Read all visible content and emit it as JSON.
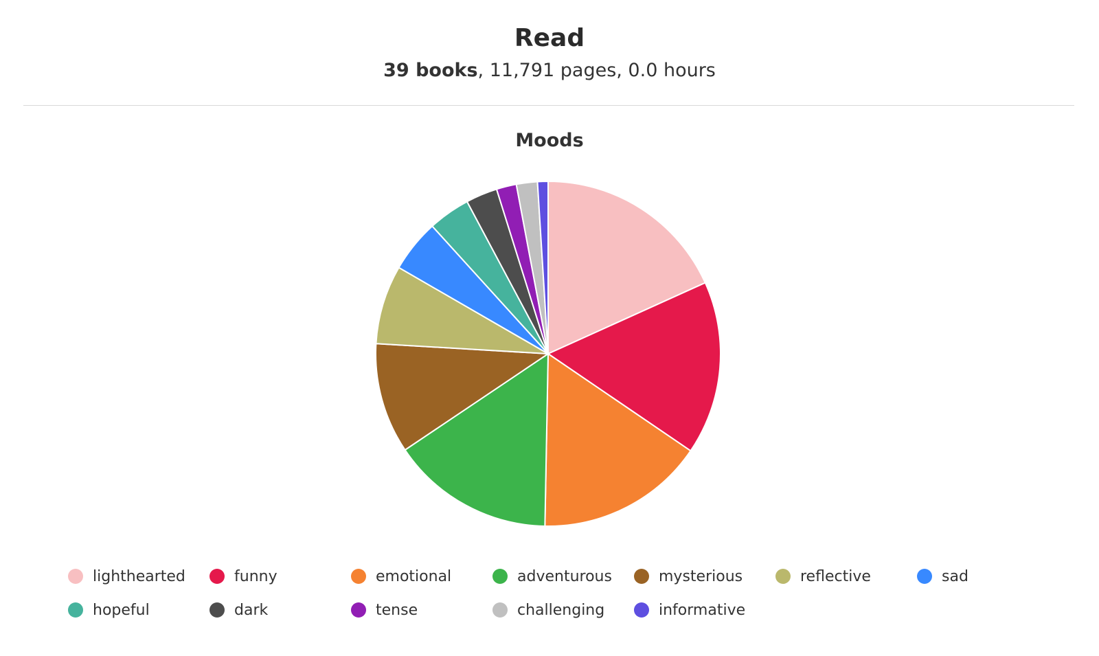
{
  "header": {
    "title": "Read",
    "books_text": "39 books",
    "rest_text": ", 11,791 pages, 0.0 hours"
  },
  "chart_data": {
    "type": "pie",
    "title": "Moods",
    "legend_position": "bottom",
    "series": [
      {
        "name": "lighthearted",
        "value": 18.5,
        "color": "#f8bfc1"
      },
      {
        "name": "funny",
        "value": 16.5,
        "color": "#e5194b"
      },
      {
        "name": "emotional",
        "value": 16.0,
        "color": "#f58231"
      },
      {
        "name": "adventurous",
        "value": 15.5,
        "color": "#3cb44b"
      },
      {
        "name": "mysterious",
        "value": 10.5,
        "color": "#9a6324"
      },
      {
        "name": "reflective",
        "value": 7.5,
        "color": "#bab86c"
      },
      {
        "name": "sad",
        "value": 5.0,
        "color": "#3889ff"
      },
      {
        "name": "hopeful",
        "value": 4.0,
        "color": "#46b39d"
      },
      {
        "name": "dark",
        "value": 3.0,
        "color": "#4d4d4d"
      },
      {
        "name": "tense",
        "value": 1.9,
        "color": "#911eb4"
      },
      {
        "name": "challenging",
        "value": 2.0,
        "color": "#c0c0c0"
      },
      {
        "name": "informative",
        "value": 1.0,
        "color": "#5e4fe0"
      }
    ]
  }
}
